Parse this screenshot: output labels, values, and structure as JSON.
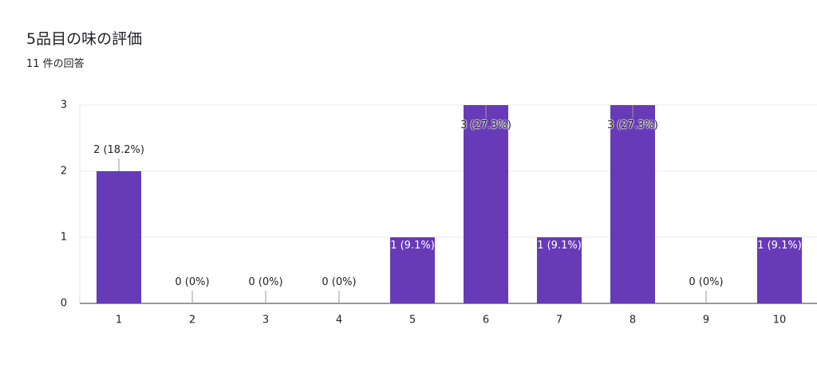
{
  "chart_data": {
    "type": "bar",
    "title": "5品目の味の評価",
    "subtitle": "11 件の回答",
    "categories": [
      "1",
      "2",
      "3",
      "4",
      "5",
      "6",
      "7",
      "8",
      "9",
      "10"
    ],
    "values": [
      2,
      0,
      0,
      0,
      1,
      3,
      1,
      3,
      0,
      1
    ],
    "value_labels": [
      "2 (18.2%)",
      "0 (0%)",
      "0 (0%)",
      "0 (0%)",
      "1 (9.1%)",
      "3 (27.3%)",
      "1 (9.1%)",
      "3 (27.3%)",
      "0 (0%)",
      "1 (9.1%)"
    ],
    "color": "#673ab7",
    "ylim": [
      0,
      3
    ],
    "yticks": [
      0,
      1,
      2,
      3
    ],
    "grid": true
  }
}
